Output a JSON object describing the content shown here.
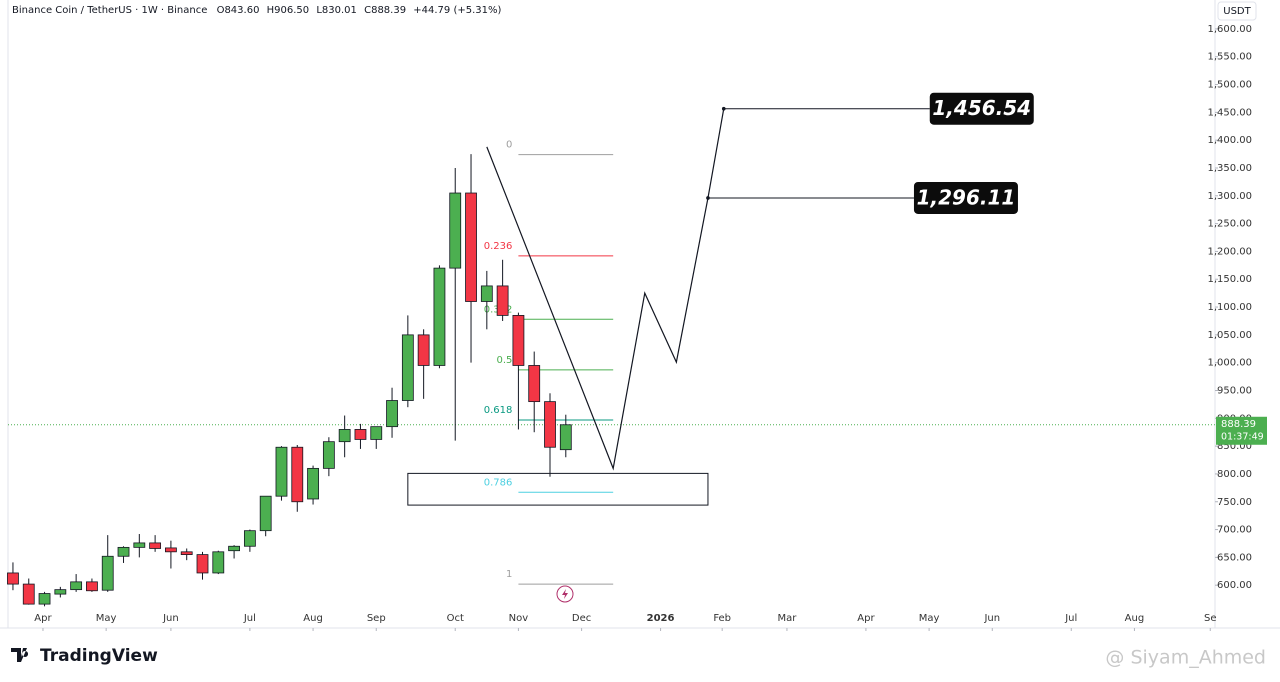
{
  "chart_data": {
    "type": "candlestick",
    "title": "Binance Coin / TetherUS · 1W · Binance",
    "ohlc_labels": [
      "O843.60",
      "H906.50",
      "L830.01",
      "C888.39"
    ],
    "change": "+44.79 (+5.31%)",
    "axis_unit": "USDT",
    "up_color": "#4caf50",
    "down_color": "#f23645",
    "open": [
      622,
      602,
      566,
      584,
      592,
      606,
      591,
      652,
      668,
      676,
      667,
      660,
      655,
      622,
      662,
      670,
      698,
      760,
      848,
      755,
      810,
      858,
      880,
      862,
      885,
      932,
      1050,
      995,
      1170,
      1305,
      1110,
      1138,
      1085,
      995,
      930,
      843.6
    ],
    "high": [
      641,
      612,
      588,
      597,
      620,
      612,
      690,
      670,
      692,
      690,
      680,
      666,
      660,
      662,
      672,
      700,
      760,
      850,
      852,
      815,
      866,
      905,
      890,
      885,
      955,
      1085,
      1060,
      1175,
      1350,
      1375,
      1165,
      1185,
      1090,
      1020,
      945,
      906.5
    ],
    "low": [
      591,
      565,
      562,
      578,
      588,
      588,
      588,
      640,
      650,
      660,
      630,
      645,
      610,
      620,
      648,
      660,
      688,
      752,
      732,
      745,
      796,
      830,
      845,
      845,
      865,
      920,
      935,
      990,
      860,
      1000,
      1060,
      1075,
      880,
      875,
      795,
      830.01
    ],
    "close": [
      602,
      566,
      585,
      592,
      606,
      590,
      652,
      668,
      676,
      666,
      660,
      655,
      622,
      660,
      670,
      698,
      760,
      848,
      750,
      810,
      858,
      880,
      862,
      885,
      932,
      1050,
      995,
      1170,
      1305,
      1110,
      1138,
      1085,
      995,
      930,
      848,
      888.39
    ],
    "xlim": [
      -0.82,
      76.1
    ],
    "xticks": [
      {
        "value": 1.9,
        "label": "Apr"
      },
      {
        "value": 5.9,
        "label": "May"
      },
      {
        "value": 10,
        "label": "Jun"
      },
      {
        "value": 15,
        "label": "Jul"
      },
      {
        "value": 19,
        "label": "Aug"
      },
      {
        "value": 23,
        "label": "Sep"
      },
      {
        "value": 28,
        "label": "Oct"
      },
      {
        "value": 32,
        "label": "Nov"
      },
      {
        "value": 36,
        "label": "Dec"
      },
      {
        "value": 41,
        "label": "2026"
      },
      {
        "value": 44.9,
        "label": "Feb"
      },
      {
        "value": 49,
        "label": "Mar"
      },
      {
        "value": 54,
        "label": "Apr"
      },
      {
        "value": 58,
        "label": "May"
      },
      {
        "value": 62,
        "label": "Jun"
      },
      {
        "value": 67,
        "label": "Jul"
      },
      {
        "value": 71,
        "label": "Aug"
      },
      {
        "value": 75.8,
        "label": "Se"
      }
    ],
    "ylim": [
      559,
      1652
    ],
    "yticks": [
      {
        "value": 600,
        "label": "600.00"
      },
      {
        "value": 650,
        "label": "650.00"
      },
      {
        "value": 700,
        "label": "700.00"
      },
      {
        "value": 750,
        "label": "750.00"
      },
      {
        "value": 800,
        "label": "800.00"
      },
      {
        "value": 850,
        "label": "850.00"
      },
      {
        "value": 900,
        "label": "900.00"
      },
      {
        "value": 950,
        "label": "950.00"
      },
      {
        "value": 1000,
        "label": "1,000.00"
      },
      {
        "value": 1050,
        "label": "1,050.00"
      },
      {
        "value": 1100,
        "label": "1,100.00"
      },
      {
        "value": 1150,
        "label": "1,150.00"
      },
      {
        "value": 1200,
        "label": "1,200.00"
      },
      {
        "value": 1250,
        "label": "1,250.00"
      },
      {
        "value": 1300,
        "label": "1,300.00"
      },
      {
        "value": 1350,
        "label": "1,350.00"
      },
      {
        "value": 1400,
        "label": "1,400.00"
      },
      {
        "value": 1450,
        "label": "1,450.00"
      },
      {
        "value": 1500,
        "label": "1,500.00"
      },
      {
        "value": 1550,
        "label": "1,550.00"
      },
      {
        "value": 1600,
        "label": "1,600.00"
      }
    ],
    "fib": {
      "x": [
        32,
        38
      ],
      "levels": [
        0,
        0.236,
        0.382,
        0.5,
        0.618,
        0.786,
        1
      ],
      "prices": [
        1374,
        1192,
        1078,
        987,
        897,
        767,
        602
      ],
      "colors": [
        "#9e9e9e",
        "#f23645",
        "#4caf50",
        "#4caf50",
        "#089981",
        "#4dd0e1",
        "#9e9e9e"
      ]
    },
    "zone": {
      "x": [
        25,
        44
      ],
      "y": [
        744,
        801
      ]
    },
    "projection": {
      "x": [
        30,
        38,
        40,
        42,
        44,
        45
      ],
      "values": [
        1388,
        810,
        1125,
        1001,
        1296.11,
        1456.54
      ]
    },
    "annotations": [
      {
        "x": 45,
        "value": 1456.54,
        "label": "1,456.54"
      },
      {
        "x": 44,
        "value": 1296.11,
        "label": "1,296.11"
      }
    ],
    "last_price": {
      "value": 888.39,
      "label": "888.39",
      "countdown": "01:37:49"
    },
    "brand": "TradingView",
    "watermark": "@ Siyam_Ahmed"
  }
}
